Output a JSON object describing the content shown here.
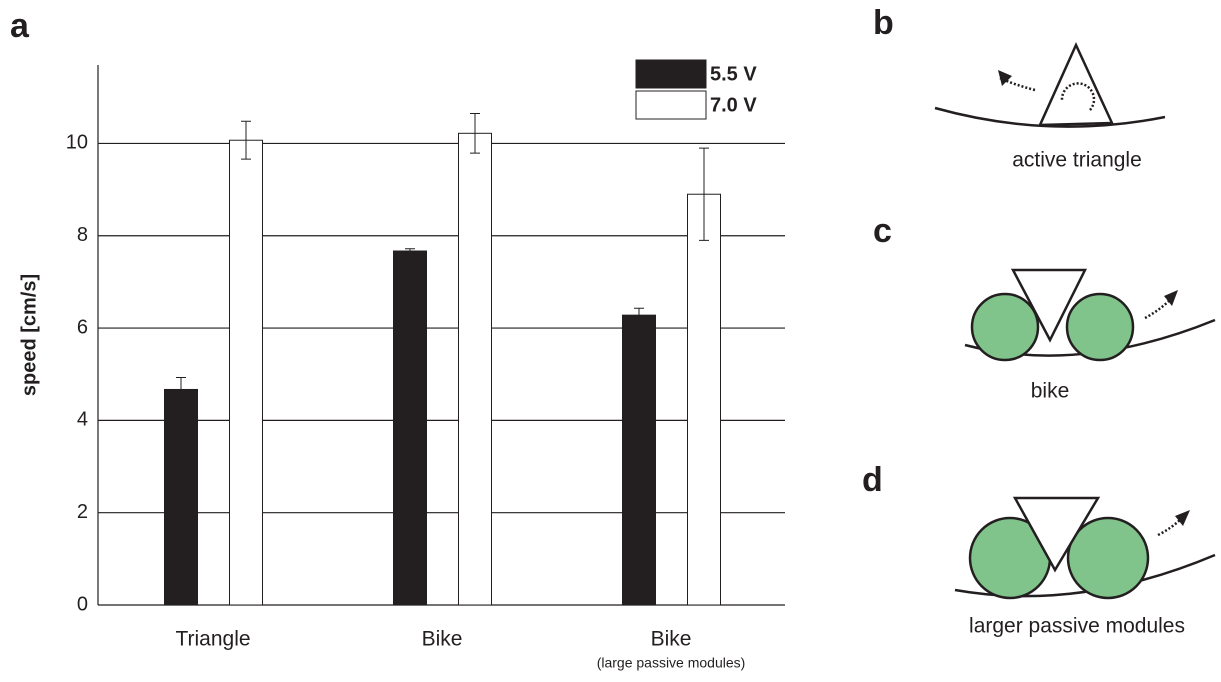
{
  "chart_data": {
    "type": "bar",
    "y_label": "speed [cm/s]",
    "categories": [
      "Triangle",
      "Bike",
      "Bike"
    ],
    "category_sublabels": [
      null,
      null,
      "(large passive modules)"
    ],
    "series": [
      {
        "name": "5.5 V",
        "color": "#231f20",
        "values": [
          4.67,
          7.67,
          6.28
        ],
        "errors": [
          0.26,
          0.05,
          0.15
        ]
      },
      {
        "name": "7.0 V",
        "color": "#ffffff",
        "values": [
          10.07,
          10.22,
          8.9
        ],
        "errors": [
          0.41,
          0.43,
          1.0
        ]
      }
    ],
    "ylim": [
      0,
      11.7
    ],
    "yticks": [
      0,
      2,
      4,
      6,
      8,
      10
    ],
    "grid": true,
    "legend": "top-right"
  },
  "figure": {
    "panel_a": "a",
    "panels": [
      {
        "letter": "b",
        "caption": "active triangle"
      },
      {
        "letter": "c",
        "caption": "bike"
      },
      {
        "letter": "d",
        "caption": "larger passive modules"
      }
    ]
  }
}
